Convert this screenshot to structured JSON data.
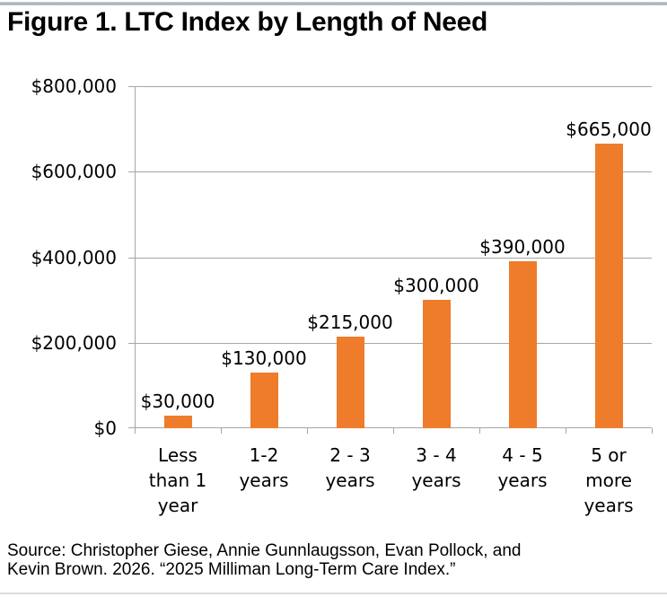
{
  "page": {
    "title": "Figure 1. LTC Index by Length of Need",
    "source_line1": "Source: Christopher Giese, Annie Gunnlaugsson, Evan Pollock, and",
    "source_line2": "Kevin Brown. 2026. “2025 Milliman Long-Term Care Index.”"
  },
  "colors": {
    "bar": "#ee7c2b",
    "grid": "#a6a6a6",
    "text": "#000000"
  },
  "chart_data": {
    "type": "bar",
    "title": "Figure 1. LTC Index by Length of Need",
    "categories": [
      "Less than 1 year",
      "1-2 years",
      "2 - 3 years",
      "3 - 4 years",
      "4 - 5 years",
      "5 or more years"
    ],
    "category_lines": [
      [
        "Less",
        "than 1",
        "year"
      ],
      [
        "1-2",
        "years"
      ],
      [
        "2 - 3",
        "years"
      ],
      [
        "3 - 4",
        "years"
      ],
      [
        "4 - 5",
        "years"
      ],
      [
        "5 or",
        "more",
        "years"
      ]
    ],
    "values": [
      30000,
      130000,
      215000,
      300000,
      390000,
      665000
    ],
    "data_labels": [
      "$30,000",
      "$130,000",
      "$215,000",
      "$300,000",
      "$390,000",
      "$665,000"
    ],
    "xlabel": "",
    "ylabel": "",
    "ylim": [
      0,
      800000
    ],
    "ytick_values": [
      0,
      200000,
      400000,
      600000,
      800000
    ],
    "ytick_labels": [
      "$0",
      "$200,000",
      "$400,000",
      "$600,000",
      "$800,000"
    ],
    "grid": true,
    "legend": "none",
    "bar_color": "#ee7c2b"
  }
}
